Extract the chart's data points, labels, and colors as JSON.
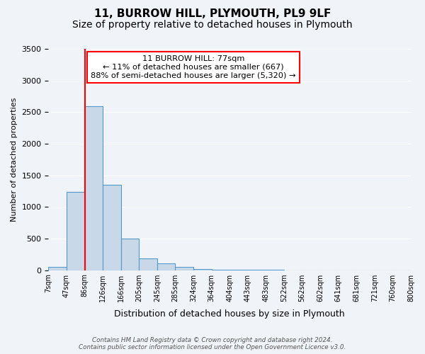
{
  "title": "11, BURROW HILL, PLYMOUTH, PL9 9LF",
  "subtitle": "Size of property relative to detached houses in Plymouth",
  "xlabel": "Distribution of detached houses by size in Plymouth",
  "ylabel": "Number of detached properties",
  "bin_edges": [
    "7sqm",
    "47sqm",
    "86sqm",
    "126sqm",
    "166sqm",
    "205sqm",
    "245sqm",
    "285sqm",
    "324sqm",
    "364sqm",
    "404sqm",
    "443sqm",
    "483sqm",
    "522sqm",
    "562sqm",
    "602sqm",
    "641sqm",
    "681sqm",
    "721sqm",
    "760sqm",
    "800sqm"
  ],
  "bar_values": [
    50,
    1240,
    2590,
    1350,
    500,
    190,
    110,
    50,
    20,
    10,
    5,
    3,
    2,
    0,
    0,
    0,
    0,
    0,
    0,
    0
  ],
  "bar_color": "#c8d8e8",
  "bar_edge_color": "#5599cc",
  "vline_x": 1.5,
  "vline_color": "red",
  "ylim": [
    0,
    3500
  ],
  "yticks": [
    0,
    500,
    1000,
    1500,
    2000,
    2500,
    3000,
    3500
  ],
  "annotation_title": "11 BURROW HILL: 77sqm",
  "annotation_line1": "← 11% of detached houses are smaller (667)",
  "annotation_line2": "88% of semi-detached houses are larger (5,320) →",
  "annotation_box_color": "white",
  "annotation_box_edge_color": "red",
  "footer_line1": "Contains HM Land Registry data © Crown copyright and database right 2024.",
  "footer_line2": "Contains public sector information licensed under the Open Government Licence v3.0.",
  "background_color": "#f0f4f8",
  "grid_color": "white",
  "title_fontsize": 11,
  "subtitle_fontsize": 10
}
